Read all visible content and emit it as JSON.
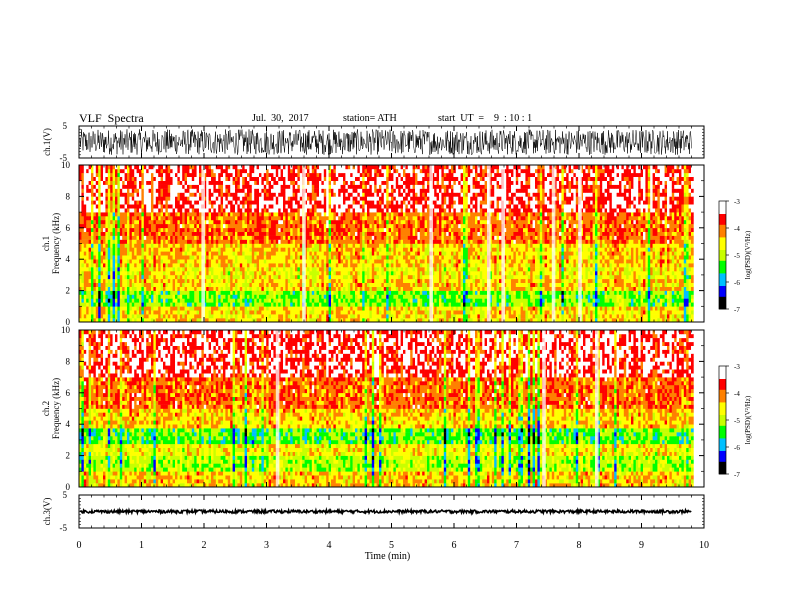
{
  "header": {
    "title": "VLF  Spectra",
    "date": "Jul.  30,  2017",
    "station": "station= ATH",
    "start": "start  UT  =    9  : 10 : 1"
  },
  "colors": {
    "axis": "#000000",
    "scale": [
      "#000000",
      "#0000ff",
      "#00c0ff",
      "#00ff00",
      "#c8ff00",
      "#ffff00",
      "#ff8000",
      "#ff0000",
      "#ffffff"
    ]
  },
  "chart_data": [
    {
      "type": "line",
      "panel": "ch1-waveform",
      "ylabel": "ch.1(V)",
      "yticks": [
        "5",
        "-5"
      ],
      "ylim": [
        -5,
        5
      ],
      "xlim": [
        0,
        10
      ],
      "amplitude_range": [
        -4,
        4
      ]
    },
    {
      "type": "heatmap",
      "panel": "ch1-spectrogram",
      "ylabel_top": "ch.1",
      "ylabel": "Frequency  (kHz)",
      "yticks": [
        "0",
        "2",
        "4",
        "6",
        "8",
        "10"
      ],
      "ylim": [
        0,
        10
      ],
      "xlim": [
        0,
        10
      ],
      "bands": [
        {
          "from": 0,
          "to": 0.8,
          "level": -4.5
        },
        {
          "from": 0.8,
          "to": 1.8,
          "level": -5.2
        },
        {
          "from": 1.8,
          "to": 2.6,
          "level": -4.4
        },
        {
          "from": 2.6,
          "to": 3.4,
          "level": -4.6
        },
        {
          "from": 3.4,
          "to": 5.0,
          "level": -4.4
        },
        {
          "from": 5.0,
          "to": 7.0,
          "level": -4.0
        },
        {
          "from": 7.0,
          "to": 10.0,
          "level": -3.5
        }
      ],
      "colorbar": {
        "label": "log(PSD)(V²/Hz)",
        "ticks": [
          "-3",
          "-4",
          "-5",
          "-6",
          "-7"
        ],
        "range": [
          -7,
          -3
        ]
      }
    },
    {
      "type": "heatmap",
      "panel": "ch2-spectrogram",
      "ylabel_top": "ch.2",
      "ylabel": "Frequency  (kHz)",
      "yticks": [
        "0",
        "2",
        "4",
        "6",
        "8",
        "10"
      ],
      "ylim": [
        0,
        10
      ],
      "xlim": [
        0,
        10
      ],
      "bands": [
        {
          "from": 0,
          "to": 0.8,
          "level": -4.4
        },
        {
          "from": 0.8,
          "to": 1.8,
          "level": -5.0
        },
        {
          "from": 1.8,
          "to": 2.6,
          "level": -4.6
        },
        {
          "from": 2.6,
          "to": 3.6,
          "level": -5.3
        },
        {
          "from": 3.6,
          "to": 5.0,
          "level": -4.4
        },
        {
          "from": 5.0,
          "to": 7.0,
          "level": -4.0
        },
        {
          "from": 7.0,
          "to": 10.0,
          "level": -3.5
        }
      ],
      "colorbar": {
        "label": "log(PSD)(V²/Hz)",
        "ticks": [
          "-3",
          "-4",
          "-5",
          "-6",
          "-7"
        ],
        "range": [
          -7,
          -3
        ]
      }
    },
    {
      "type": "line",
      "panel": "ch3-waveform",
      "ylabel": "ch.3(V)",
      "yticks": [
        "5",
        "-5"
      ],
      "ylim": [
        -5,
        5
      ],
      "xlim": [
        0,
        10
      ],
      "baseline": 0,
      "xlabel": "Time  (min)",
      "xticks": [
        "0",
        "1",
        "2",
        "3",
        "4",
        "5",
        "6",
        "7",
        "8",
        "9",
        "10"
      ]
    }
  ]
}
